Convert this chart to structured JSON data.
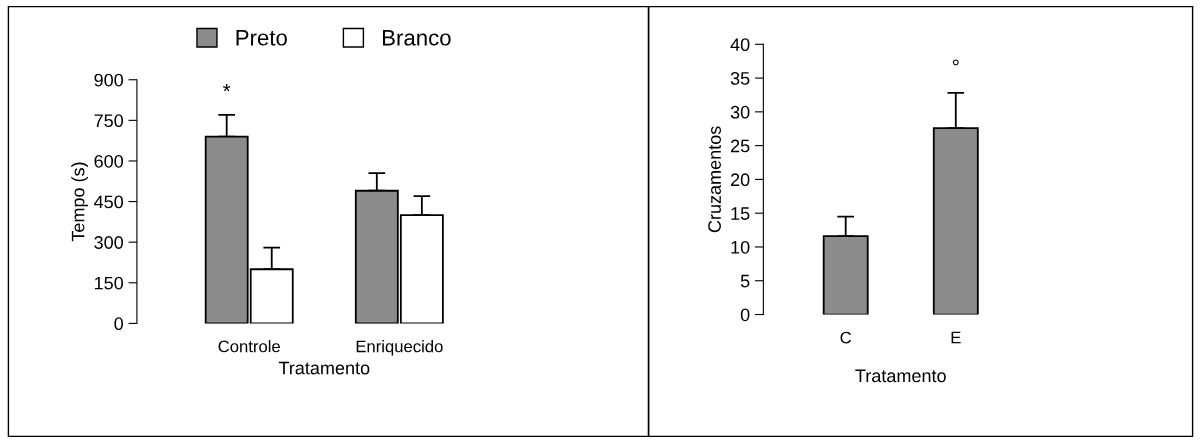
{
  "chart_data": [
    {
      "type": "bar",
      "xlabel": "Tratamento",
      "ylabel": "Tempo (s)",
      "categories": [
        "Controle",
        "Enriquecido"
      ],
      "ylim": [
        0,
        900
      ],
      "yticks": [
        0,
        150,
        300,
        450,
        600,
        750,
        900
      ],
      "legend": "top",
      "grid": false,
      "series": [
        {
          "name": "Preto",
          "color": "#8c8c8c",
          "values": [
            690,
            490
          ],
          "errors": [
            [
              690,
              770
            ],
            [
              490,
              555
            ]
          ]
        },
        {
          "name": "Branco",
          "color": "#ffffff",
          "values": [
            200,
            400
          ],
          "errors": [
            [
              200,
              280
            ],
            [
              400,
              470
            ]
          ]
        }
      ],
      "annotations": [
        "*"
      ]
    },
    {
      "type": "bar",
      "xlabel": "Tratamento",
      "ylabel": "Cruzamentos",
      "categories": [
        "C",
        "E"
      ],
      "ylim": [
        0,
        40
      ],
      "yticks": [
        0,
        5,
        10,
        15,
        20,
        25,
        30,
        35,
        40
      ],
      "legend": false,
      "grid": false,
      "series": [
        {
          "color": "#8c8c8c",
          "values": [
            11.6,
            27.6
          ],
          "errors": [
            [
              11.6,
              14.5
            ],
            [
              27.6,
              32.8
            ]
          ]
        }
      ],
      "annotations": [
        "°"
      ]
    }
  ]
}
